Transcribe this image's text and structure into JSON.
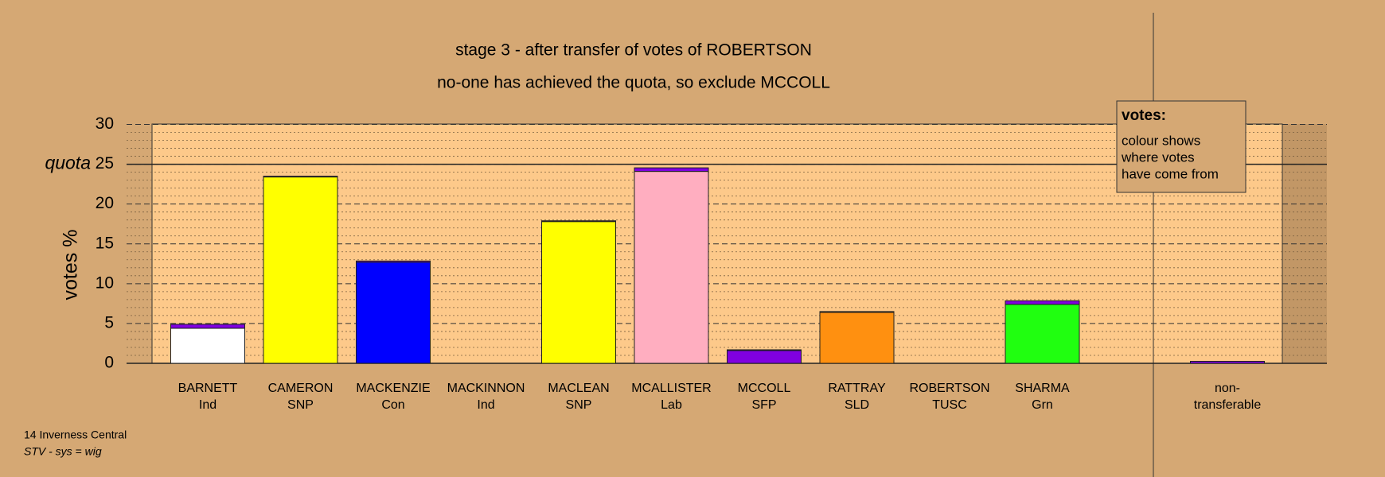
{
  "chart_data": {
    "type": "stacked_bar",
    "title": "stage 3 - after transfer of votes of ROBERTSON",
    "subtitle": "no-one has achieved the quota, so exclude MCCOLL",
    "y_label": "votes %",
    "categories": [
      "BARNETT",
      "CAMERON",
      "MACKENZIE",
      "MACKINNON",
      "MACLEAN",
      "MCALLISTER",
      "MCCOLL",
      "RATTRAY",
      "ROBERTSON",
      "SHARMA",
      "non-"
    ],
    "parties": [
      "Ind",
      "SNP",
      "Con",
      "Ind",
      "SNP",
      "Lab",
      "SFP",
      "SLD",
      "TUSC",
      "Grn",
      "transferable"
    ],
    "series": [
      {
        "colors": [
          "#ffffff",
          "#ffff00",
          "#0000ff",
          "#ffffff",
          "#ffff00",
          "#ffaec0",
          "#8000e0",
          "#ff9010",
          "#8000e0",
          "#20ff10",
          "#400040"
        ],
        "values": [
          4.4,
          23.4,
          12.7,
          0,
          17.8,
          24.1,
          1.6,
          6.4,
          0,
          7.4,
          0
        ]
      },
      {
        "color": "#8000e0",
        "values": [
          0.5,
          0.1,
          0.15,
          0,
          0.1,
          0.45,
          0.1,
          0.1,
          0,
          0.45,
          0.25
        ]
      }
    ],
    "ylim": [
      0,
      30
    ],
    "yticks": [
      0,
      5,
      10,
      15,
      20,
      25,
      30
    ],
    "minor_yticks": [
      1,
      2,
      3,
      4,
      6,
      7,
      8,
      9,
      11,
      12,
      13,
      14,
      16,
      17,
      18,
      19,
      21,
      22,
      23,
      24,
      26,
      27,
      28,
      29
    ],
    "quota": 25,
    "quota_label": "quota",
    "legend_title": "votes:",
    "legend_lines": [
      "colour shows",
      "where votes",
      "have come from"
    ],
    "footer": [
      "14 Inverness Central",
      "STV - sys = wig"
    ]
  }
}
